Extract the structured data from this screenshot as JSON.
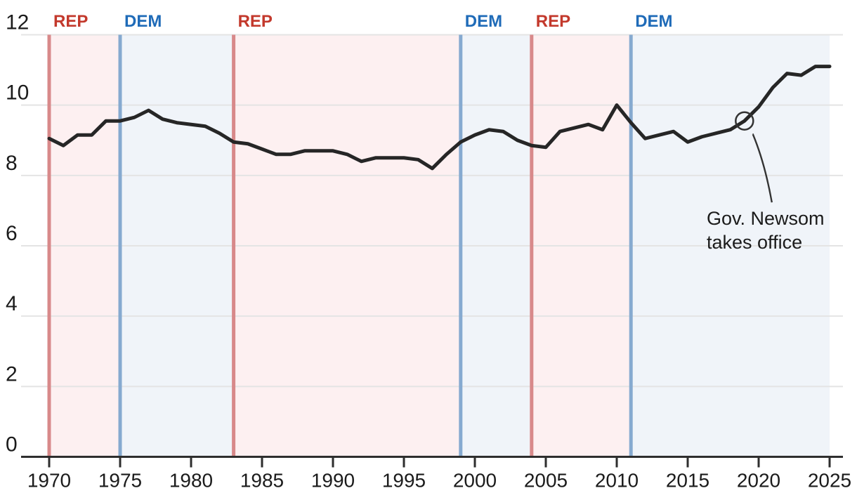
{
  "colors": {
    "background": "#ffffff",
    "rep_band": "#fdf0f1",
    "dem_band": "#f0f4f9",
    "rep_divider": "#d8898a",
    "dem_divider": "#86aad0",
    "rep_text": "#c3392c",
    "dem_text": "#1f6bb8",
    "series_line": "#262626",
    "grid_line": "#e4e4e4",
    "axis_line": "#2e2e2e",
    "tick_text": "#1b1b1b",
    "annotation_text": "#1b1b1b"
  },
  "chart_data": {
    "type": "line",
    "x": [
      1970,
      1971,
      1972,
      1973,
      1974,
      1975,
      1976,
      1977,
      1978,
      1979,
      1980,
      1981,
      1982,
      1983,
      1984,
      1985,
      1986,
      1987,
      1988,
      1989,
      1990,
      1991,
      1992,
      1993,
      1994,
      1995,
      1996,
      1997,
      1998,
      1999,
      2000,
      2001,
      2002,
      2003,
      2004,
      2005,
      2006,
      2007,
      2008,
      2009,
      2010,
      2011,
      2012,
      2013,
      2014,
      2015,
      2016,
      2017,
      2018,
      2019,
      2020,
      2021,
      2022,
      2023,
      2024,
      2025
    ],
    "values": [
      9.05,
      8.85,
      9.15,
      9.15,
      9.55,
      9.55,
      9.65,
      9.85,
      9.6,
      9.5,
      9.45,
      9.4,
      9.2,
      8.95,
      8.9,
      8.75,
      8.6,
      8.6,
      8.7,
      8.7,
      8.7,
      8.6,
      8.4,
      8.5,
      8.5,
      8.5,
      8.45,
      8.2,
      8.6,
      8.95,
      9.15,
      9.3,
      9.25,
      9.0,
      8.85,
      8.8,
      9.25,
      9.35,
      9.45,
      9.3,
      10.0,
      9.5,
      9.05,
      9.15,
      9.25,
      8.95,
      9.1,
      9.2,
      9.3,
      9.55,
      9.95,
      10.5,
      10.9,
      10.85,
      11.1,
      11.1
    ],
    "title": "",
    "xlabel": "",
    "ylabel": "",
    "ylim": [
      0,
      12
    ],
    "xlim": [
      1970,
      2025
    ],
    "yticks": [
      0,
      2,
      4,
      6,
      8,
      10,
      12
    ],
    "xticks": [
      1970,
      1975,
      1980,
      1985,
      1990,
      1995,
      2000,
      2005,
      2010,
      2015,
      2020,
      2025
    ],
    "grid": true,
    "legend_position": "none",
    "party_bands": [
      {
        "label": "REP",
        "party": "REP",
        "start_year": 1970,
        "end_year": 1975
      },
      {
        "label": "DEM",
        "party": "DEM",
        "start_year": 1975,
        "end_year": 1983
      },
      {
        "label": "REP",
        "party": "REP",
        "start_year": 1983,
        "end_year": 1999
      },
      {
        "label": "DEM",
        "party": "DEM",
        "start_year": 1999,
        "end_year": 2004
      },
      {
        "label": "REP",
        "party": "REP",
        "start_year": 2004,
        "end_year": 2011
      },
      {
        "label": "DEM",
        "party": "DEM",
        "start_year": 2011,
        "end_year": 2025
      }
    ],
    "annotation": {
      "text_line1": "Gov. Newsom",
      "text_line2": "takes office",
      "year": 2019,
      "value": 9.55,
      "marker": "open-circle"
    }
  }
}
